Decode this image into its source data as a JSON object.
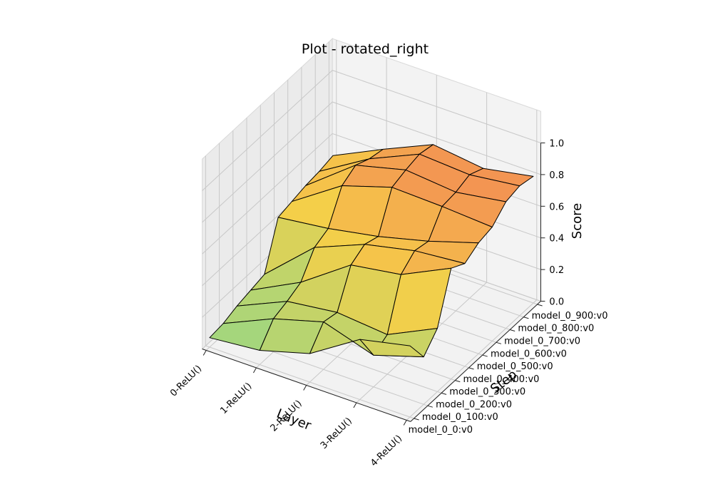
{
  "chart_data": {
    "type": "surface",
    "title": "Plot - rotated_right",
    "xlabel": "Layer",
    "ylabel": "Step",
    "zlabel": "Score",
    "x_categories": [
      "0-ReLU()",
      "1-ReLU()",
      "2-ReLU()",
      "3-ReLU()",
      "4-ReLU()"
    ],
    "y_categories": [
      "model_0_0:v0",
      "model_0_100:v0",
      "model_0_200:v0",
      "model_0_300:v0",
      "model_0_400:v0",
      "model_0_500:v0",
      "model_0_600:v0",
      "model_0_700:v0",
      "model_0_800:v0",
      "model_0_900:v0"
    ],
    "z_ticks": [
      "0.0",
      "0.2",
      "0.4",
      "0.6",
      "0.8",
      "1.0"
    ],
    "zlim": [
      0,
      1
    ],
    "grid": true,
    "colormap_low": "#8fd88a",
    "colormap_mid": "#f6cf48",
    "colormap_high": "#f06a5a",
    "z": [
      [
        0.06,
        0.07,
        0.1,
        0.12,
        0.14,
        0.42,
        0.44,
        0.46,
        0.47,
        0.49
      ],
      [
        0.09,
        0.21,
        0.24,
        0.28,
        0.42,
        0.46,
        0.65,
        0.7,
        0.66,
        0.64
      ],
      [
        0.18,
        0.3,
        0.28,
        0.5,
        0.55,
        0.52,
        0.75,
        0.78,
        0.8,
        0.78
      ],
      [
        0.38,
        0.2,
        0.25,
        0.55,
        0.62,
        0.6,
        0.74,
        0.75,
        0.78,
        0.74
      ],
      [
        0.45,
        0.3,
        0.4,
        0.7,
        0.65,
        0.7,
        0.72,
        0.8,
        0.82,
        0.8
      ]
    ]
  }
}
